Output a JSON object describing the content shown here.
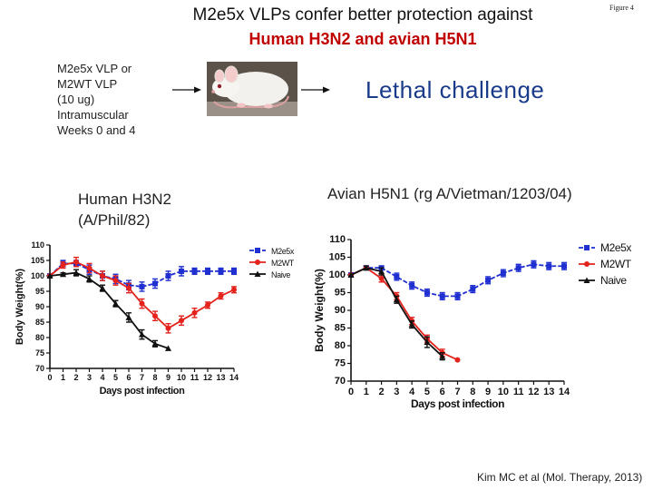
{
  "title": {
    "line1": "M2e5x VLPs confer better protection against",
    "line2": "Human H3N2 and avian H5N1",
    "figure_label": "Figure 4"
  },
  "protocol": {
    "lines": [
      "M2e5x VLP or",
      "M2WT VLP",
      "(10 ug)",
      "Intramuscular",
      "Weeks 0 and 4"
    ],
    "challenge": "Lethal challenge",
    "mouse_icon": "mouse-photo"
  },
  "citation": "Kim MC et al (Mol. Therapy, 2013)",
  "colors": {
    "M2e5x": "#1f2fd0",
    "M2WT": "#e3231c",
    "Naive": "#111111"
  },
  "chart_data": [
    {
      "type": "line",
      "subtitle_line1": "Human H3N2",
      "subtitle_line2": "(A/Phil/82)",
      "xlabel": "Days post infection",
      "ylabel": "Body Weight(%)",
      "xlim": [
        0,
        14
      ],
      "ylim": [
        70,
        110
      ],
      "xticks": [
        0,
        1,
        2,
        3,
        4,
        5,
        6,
        7,
        8,
        9,
        10,
        11,
        12,
        13,
        14
      ],
      "yticks": [
        70,
        75,
        80,
        85,
        90,
        95,
        100,
        105,
        110
      ],
      "legend": [
        "M2e5x",
        "M2WT",
        "Naive"
      ],
      "series": [
        {
          "name": "M2e5x",
          "marker": "square",
          "x": [
            0,
            1,
            2,
            3,
            4,
            5,
            6,
            7,
            8,
            9,
            10,
            11,
            12,
            13,
            14
          ],
          "y": [
            100,
            104,
            104,
            102,
            100,
            99,
            97,
            96.5,
            97.5,
            100,
            101.5,
            101.5,
            101.5,
            101.5,
            101.5
          ],
          "err": [
            0,
            1,
            1,
            1.5,
            1.5,
            1.5,
            1.5,
            1.5,
            1.5,
            1.5,
            1.5,
            1,
            1,
            1,
            1
          ]
        },
        {
          "name": "M2WT",
          "marker": "circle",
          "x": [
            0,
            1,
            2,
            3,
            4,
            5,
            6,
            7,
            8,
            9,
            10,
            11,
            12,
            13,
            14
          ],
          "y": [
            100,
            103.5,
            104.5,
            102.5,
            100,
            98.5,
            96,
            91,
            87,
            83,
            85.5,
            88,
            90.5,
            93.5,
            95.5
          ],
          "err": [
            0,
            1,
            1.5,
            1.5,
            1.5,
            1.5,
            1.5,
            1.5,
            1.5,
            1.5,
            1.5,
            1.5,
            1,
            1,
            1
          ]
        },
        {
          "name": "Naive",
          "marker": "triangle",
          "x": [
            0,
            1,
            2,
            3,
            4,
            5,
            6,
            7,
            8,
            9
          ],
          "y": [
            100,
            100.5,
            101,
            99,
            96,
            91,
            86.5,
            81,
            78,
            76.5
          ],
          "err": [
            0,
            0.5,
            1,
            1,
            1,
            1,
            1.5,
            1.5,
            1,
            0
          ]
        }
      ]
    },
    {
      "type": "line",
      "subtitle": "Avian H5N1 (rg A/Vietman/1203/04)",
      "xlabel": "Days post infection",
      "ylabel": "Body Weight(%)",
      "xlim": [
        0,
        14
      ],
      "ylim": [
        70,
        110
      ],
      "xticks": [
        0,
        1,
        2,
        3,
        4,
        5,
        6,
        7,
        8,
        9,
        10,
        11,
        12,
        13,
        14
      ],
      "yticks": [
        70,
        75,
        80,
        85,
        90,
        95,
        100,
        105,
        110
      ],
      "legend": [
        "M2e5x",
        "M2WT",
        "Naive"
      ],
      "series": [
        {
          "name": "M2e5x",
          "marker": "square",
          "x": [
            0,
            1,
            2,
            3,
            4,
            5,
            6,
            7,
            8,
            9,
            10,
            11,
            12,
            13,
            14
          ],
          "y": [
            100,
            102,
            102,
            99.5,
            97,
            95,
            94,
            94,
            96,
            98.5,
            100.5,
            102,
            103,
            102.5,
            102.5
          ],
          "err": [
            0,
            0.5,
            0.5,
            1,
            1,
            1,
            1,
            1,
            1,
            1,
            1,
            1,
            1,
            1,
            1
          ]
        },
        {
          "name": "M2WT",
          "marker": "circle",
          "x": [
            0,
            1,
            2,
            3,
            4,
            5,
            6,
            7
          ],
          "y": [
            100,
            102,
            99,
            94,
            87,
            82,
            78,
            76
          ],
          "err": [
            0,
            0.5,
            1,
            1,
            1,
            1,
            1,
            0
          ]
        },
        {
          "name": "Naive",
          "marker": "triangle",
          "x": [
            0,
            1,
            2,
            3,
            4,
            5,
            6
          ],
          "y": [
            100,
            102,
            101,
            93,
            86,
            81,
            77
          ],
          "err": [
            0,
            0.5,
            1,
            1,
            1,
            1.5,
            1
          ]
        }
      ]
    }
  ]
}
